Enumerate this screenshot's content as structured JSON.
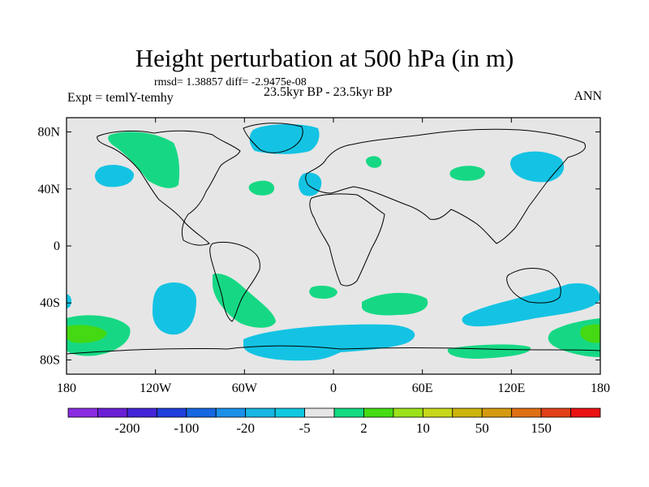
{
  "title": "Height perturbation at 500 hPa (in m)",
  "stats": "rmsd= 1.38857  diff= -2.9475e-08",
  "experiment": "Expt = temlY-temhy",
  "subtitle": "23.5kyr BP - 23.5kyr BP",
  "season": "ANN",
  "lat_labels": [
    "80N",
    "40N",
    "0",
    "40S",
    "80S"
  ],
  "lat_values": [
    80,
    40,
    0,
    -40,
    -80
  ],
  "lon_labels": [
    "180",
    "120W",
    "60W",
    "0",
    "60E",
    "120E",
    "180"
  ],
  "lon_values": [
    -180,
    -120,
    -60,
    0,
    60,
    120,
    180
  ],
  "colorbar": {
    "colors": [
      "#8a2be2",
      "#6a1fd6",
      "#4424d8",
      "#1f3fdc",
      "#1467e0",
      "#1a90e8",
      "#17b6e3",
      "#10c8e0",
      "#e6e6e6",
      "#12db82",
      "#46dc14",
      "#9ce21a",
      "#c7d71a",
      "#ccb40c",
      "#d69a10",
      "#de7014",
      "#e24018",
      "#ea1212"
    ],
    "labels": [
      "-200",
      "-100",
      "-20",
      "-5",
      "2",
      "10",
      "50",
      "150"
    ],
    "label_after_box": [
      1,
      3,
      5,
      7,
      9,
      11,
      13,
      15
    ]
  },
  "colors": {
    "neg": "#14c3e3",
    "pos": "#16d884",
    "pos_strong": "#45d913",
    "ocean": "#e6e6e6"
  },
  "icon": "world-map-coastlines"
}
